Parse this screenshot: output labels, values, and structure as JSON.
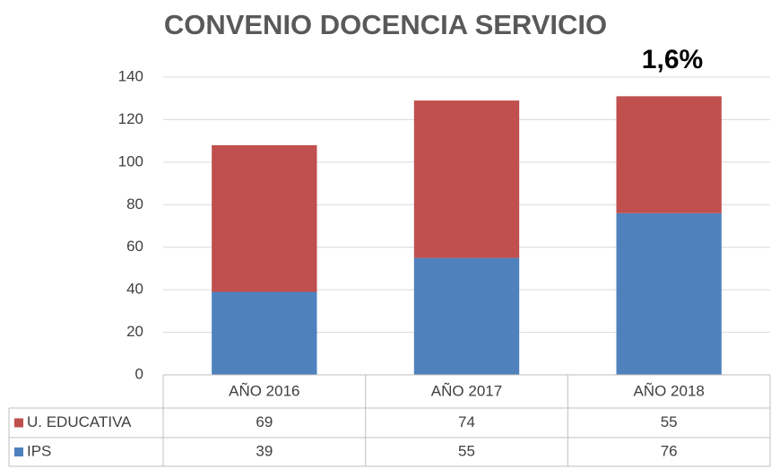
{
  "chart_data": {
    "type": "stacked_bar",
    "title": "CONVENIO DOCENCIA SERVICIO",
    "annotations": [
      "1,6%"
    ],
    "categories": [
      "AÑO 2016",
      "AÑO 2017",
      "AÑO 2018"
    ],
    "series": [
      {
        "name": "U. EDUCATIVA",
        "color": "#c0504d",
        "values": [
          69,
          74,
          55
        ]
      },
      {
        "name": "IPS",
        "color": "#4f81bd",
        "values": [
          39,
          55,
          76
        ]
      }
    ],
    "ylim": [
      0,
      140
    ],
    "yticks": [
      0,
      20,
      40,
      60,
      80,
      100,
      120,
      140
    ],
    "grid": true,
    "data_table": true
  }
}
